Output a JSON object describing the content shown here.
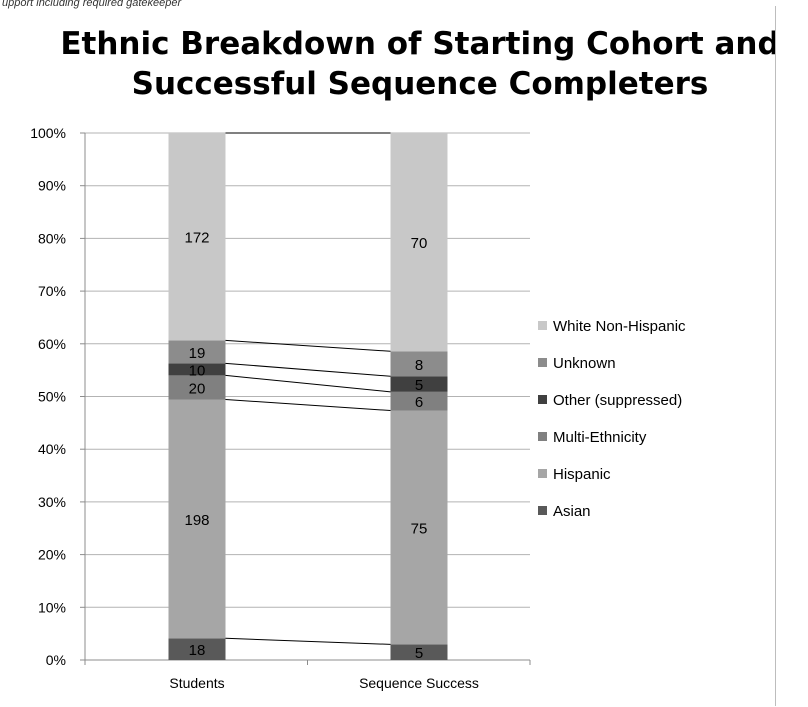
{
  "caption": "upport including required gatekeeper",
  "chart_data": {
    "type": "stacked-bar-100",
    "title_lines": [
      "Ethnic Breakdown of Starting Cohort and",
      "Successful Sequence Completers"
    ],
    "categories": [
      "Students",
      "Sequence Success"
    ],
    "y_ticks": [
      "0%",
      "10%",
      "20%",
      "30%",
      "40%",
      "50%",
      "60%",
      "70%",
      "80%",
      "90%",
      "100%"
    ],
    "ylim": [
      0,
      100
    ],
    "grid": true,
    "series_lines": true,
    "legend_position": "right",
    "series": [
      {
        "name": "Asian",
        "values": [
          18,
          5
        ],
        "color": "#595959"
      },
      {
        "name": "Hispanic",
        "values": [
          198,
          75
        ],
        "color": "#a6a6a6"
      },
      {
        "name": "Multi-Ethnicity",
        "values": [
          20,
          6
        ],
        "color": "#808080"
      },
      {
        "name": "Other (suppressed)",
        "values": [
          10,
          5
        ],
        "color": "#404040"
      },
      {
        "name": "Unknown",
        "values": [
          19,
          8
        ],
        "color": "#8c8c8c"
      },
      {
        "name": "White Non-Hispanic",
        "values": [
          172,
          70
        ],
        "color": "#c8c8c8"
      }
    ]
  }
}
